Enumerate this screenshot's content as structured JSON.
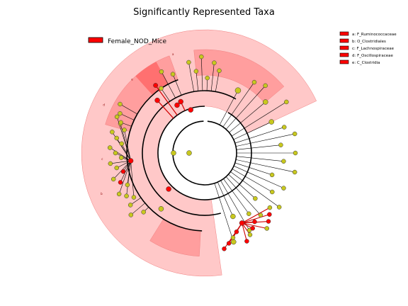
{
  "chart_data": {
    "type": "cladogram",
    "title": "Significantly Represented Taxa",
    "group_legend": {
      "label": "Female_NOD_Mice",
      "color": "#ff0000"
    },
    "clade_legend": [
      {
        "key": "a",
        "label": "a: F_Ruminococcaceae"
      },
      {
        "key": "b",
        "label": "b: O_Clostridiales"
      },
      {
        "key": "c",
        "label": "c: F_Lachnospiraceae"
      },
      {
        "key": "d",
        "label": "d: F_Oscillospiraceae"
      },
      {
        "key": "e",
        "label": "e: C_Clostridia"
      }
    ],
    "clade_markers": [
      {
        "key": "a"
      },
      {
        "key": "b"
      },
      {
        "key": "c"
      },
      {
        "key": "d"
      },
      {
        "key": "e"
      }
    ],
    "colors": {
      "enriched": "#ff0000",
      "neutral": "#c8c81e",
      "shade_outer": "#ffc8c8",
      "shade_inner": "#ff9e9e",
      "shade_deep": "#ff7070",
      "edge": "#000000"
    },
    "highlighted_sectors": [
      {
        "name": "outer",
        "start_deg": 82,
        "end_deg": 335
      },
      {
        "name": "inner-1",
        "start_deg": 93,
        "end_deg": 122
      },
      {
        "name": "inner-2",
        "start_deg": 196,
        "end_deg": 250
      },
      {
        "name": "inner-3",
        "start_deg": 264,
        "end_deg": 320
      }
    ]
  }
}
